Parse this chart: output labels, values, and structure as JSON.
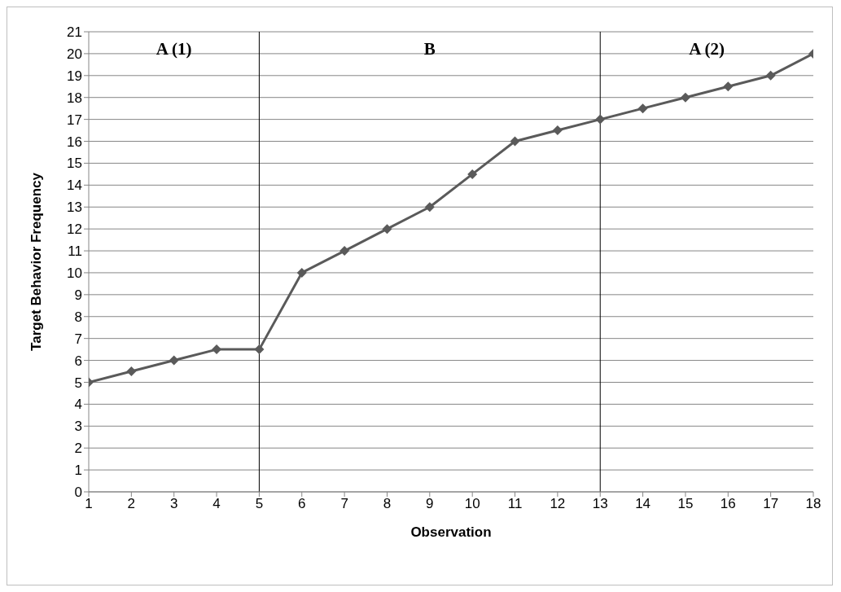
{
  "chart_data": {
    "type": "line",
    "xlabel": "Observation",
    "ylabel": "Target Behavior Frequency",
    "x": [
      1,
      2,
      3,
      4,
      5,
      6,
      7,
      8,
      9,
      10,
      11,
      12,
      13,
      14,
      15,
      16,
      17,
      18
    ],
    "series": [
      {
        "color": "#5a5a5a",
        "values": [
          5,
          5.5,
          6,
          6.5,
          6.5,
          10,
          11,
          12,
          13,
          14.5,
          16,
          16.5,
          17,
          17.5,
          18,
          18.5,
          19,
          20
        ]
      }
    ],
    "xlim": [
      1,
      18
    ],
    "xticks": [
      1,
      2,
      3,
      4,
      5,
      6,
      7,
      8,
      9,
      10,
      11,
      12,
      13,
      14,
      15,
      16,
      17,
      18
    ],
    "ylim": [
      0,
      21
    ],
    "yticks": [
      0,
      1,
      2,
      3,
      4,
      5,
      6,
      7,
      8,
      9,
      10,
      11,
      12,
      13,
      14,
      15,
      16,
      17,
      18,
      19,
      20,
      21
    ],
    "grid": "y",
    "marker": "diamond",
    "line_style": "solid",
    "legend": false,
    "ref_lines": [
      {
        "axis": "x",
        "value": 5,
        "color": "#000000"
      },
      {
        "axis": "x",
        "value": 13,
        "color": "#000000"
      }
    ],
    "annotations": [
      "A (1)",
      "B",
      "A (2)"
    ]
  }
}
